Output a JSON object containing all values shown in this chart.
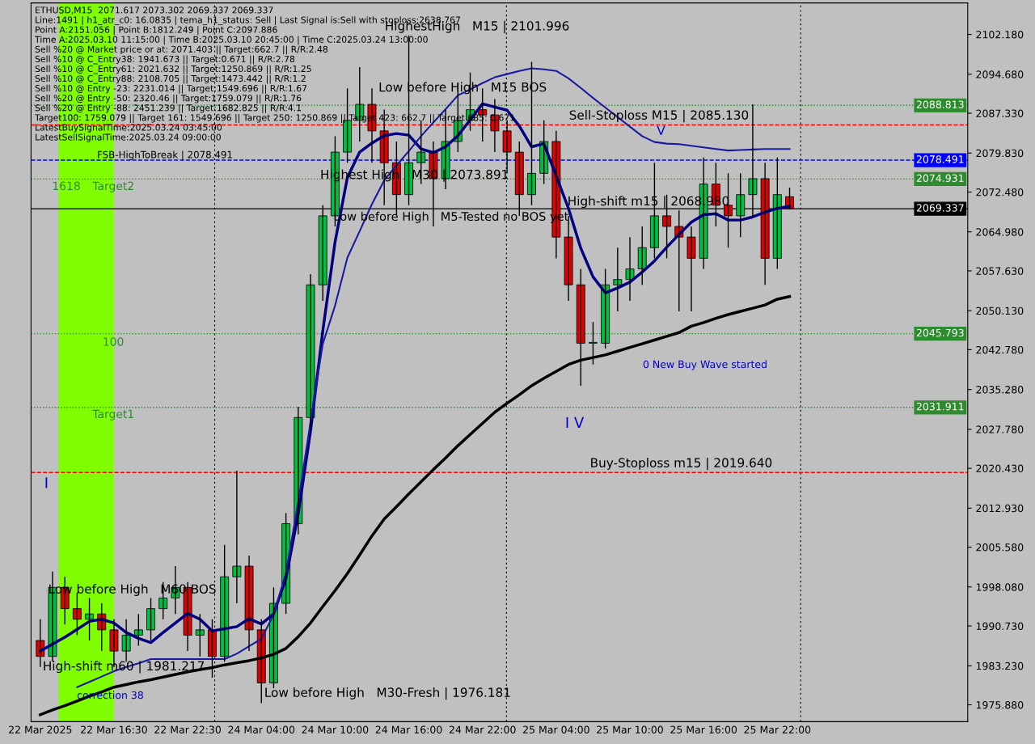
{
  "chart_data": {
    "type": "candlestick",
    "categories": [
      "22 Mar 2025",
      null,
      null,
      null,
      null,
      null,
      "22 Mar 16:30",
      null,
      null,
      null,
      null,
      null,
      "22 Mar 22:30",
      null,
      null,
      null,
      null,
      null,
      "24 Mar 04:00",
      null,
      null,
      null,
      null,
      null,
      "24 Mar 10:00",
      null,
      null,
      null,
      null,
      null,
      "24 Mar 16:00",
      null,
      null,
      null,
      null,
      null,
      "24 Mar 22:00",
      null,
      null,
      null,
      null,
      null,
      "25 Mar 04:00",
      null,
      null,
      null,
      null,
      null,
      "25 Mar 10:00",
      null,
      null,
      null,
      null,
      null,
      "25 Mar 16:00",
      null,
      null,
      null,
      null,
      null,
      "25 Mar 22:00",
      null
    ],
    "ohlc": [
      [
        1988,
        1992,
        1983,
        1985
      ],
      [
        1985,
        2001,
        1984,
        1998
      ],
      [
        1998,
        2000,
        1991,
        1994
      ],
      [
        1994,
        1997,
        1989,
        1992
      ],
      [
        1992,
        1996,
        1988,
        1993
      ],
      [
        1993,
        1995,
        1986,
        1990
      ],
      [
        1990,
        1992,
        1983,
        1986
      ],
      [
        1986,
        1992,
        1984,
        1989
      ],
      [
        1989,
        1993,
        1987,
        1990
      ],
      [
        1990,
        1996,
        1988,
        1994
      ],
      [
        1994,
        1999,
        1992,
        1996
      ],
      [
        1996,
        2002,
        1993,
        1998
      ],
      [
        1998,
        1999,
        1986,
        1989
      ],
      [
        1989,
        1993,
        1985,
        1990
      ],
      [
        1990,
        1992,
        1981,
        1985
      ],
      [
        1985,
        2006,
        1984,
        2000
      ],
      [
        2000,
        2020,
        1995,
        2002
      ],
      [
        2002,
        2004,
        1986,
        1990
      ],
      [
        1990,
        1992,
        1976.2,
        1980
      ],
      [
        1980,
        1998,
        1979,
        1995
      ],
      [
        1995,
        2012,
        1993,
        2010
      ],
      [
        2010,
        2032,
        2008,
        2030
      ],
      [
        2030,
        2057,
        2028,
        2055
      ],
      [
        2055,
        2070,
        2052,
        2068
      ],
      [
        2068,
        2083,
        2066,
        2080
      ],
      [
        2080,
        2092,
        2078,
        2086
      ],
      [
        2086,
        2096,
        2082,
        2089
      ],
      [
        2089,
        2092,
        2078,
        2084
      ],
      [
        2084,
        2088,
        2070,
        2078
      ],
      [
        2078,
        2082,
        2068,
        2072
      ],
      [
        2072,
        2102,
        2070,
        2078
      ],
      [
        2078,
        2086,
        2074,
        2080
      ],
      [
        2080,
        2082,
        2066,
        2075
      ],
      [
        2075,
        2088,
        2073,
        2082
      ],
      [
        2082,
        2093,
        2080,
        2086
      ],
      [
        2086,
        2095,
        2084,
        2088
      ],
      [
        2088,
        2092,
        2082,
        2087
      ],
      [
        2087,
        2090,
        2080,
        2084
      ],
      [
        2084,
        2086,
        2076,
        2080
      ],
      [
        2080,
        2082,
        2068,
        2072
      ],
      [
        2072,
        2097,
        2070,
        2076
      ],
      [
        2076,
        2086,
        2074,
        2082
      ],
      [
        2082,
        2084,
        2060,
        2064
      ],
      [
        2064,
        2068,
        2052,
        2055
      ],
      [
        2055,
        2058,
        2036,
        2044
      ],
      [
        2044,
        2048,
        2040,
        2044
      ],
      [
        2044,
        2058,
        2043,
        2055
      ],
      [
        2055,
        2062,
        2050,
        2056
      ],
      [
        2056,
        2064,
        2052,
        2058
      ],
      [
        2058,
        2066,
        2055,
        2062
      ],
      [
        2062,
        2078,
        2060,
        2068
      ],
      [
        2068,
        2072,
        2060,
        2066
      ],
      [
        2066,
        2069,
        2050,
        2064
      ],
      [
        2064,
        2066,
        2050,
        2060
      ],
      [
        2060,
        2079,
        2058,
        2074
      ],
      [
        2074,
        2078,
        2066,
        2070
      ],
      [
        2070,
        2076,
        2062,
        2068
      ],
      [
        2068,
        2076,
        2064,
        2072
      ],
      [
        2072,
        2089,
        2068,
        2075
      ],
      [
        2075,
        2078,
        2055,
        2060
      ],
      [
        2060,
        2079,
        2058,
        2072
      ],
      [
        2071.617,
        2073.302,
        2069.337,
        2069.337
      ]
    ],
    "series": [
      {
        "type": "line",
        "color": "#000000",
        "values": [
          1974.0,
          1974.9,
          1975.7,
          1976.6,
          1977.5,
          1978.3,
          1979.2,
          1979.7,
          1980.2,
          1980.6,
          1981.1,
          1981.6,
          1982.1,
          1982.5,
          1982.9,
          1983.4,
          1983.8,
          1984.2,
          1984.7,
          1985.4,
          1986.5,
          1988.7,
          1991.3,
          1994.4,
          1997.4,
          2000.6,
          2004.1,
          2007.7,
          2010.9,
          2013.2,
          2015.6,
          2017.9,
          2020.2,
          2022.4,
          2024.7,
          2026.8,
          2028.9,
          2031.0,
          2032.7,
          2034.3,
          2036.0,
          2037.4,
          2038.7,
          2040.0,
          2040.8,
          2041.3,
          2041.8,
          2042.5,
          2043.2,
          2043.9,
          2044.6,
          2045.3,
          2046.0,
          2047.2,
          2047.9,
          2048.7,
          2049.4,
          2050.0,
          2050.6,
          2051.2,
          2052.3,
          2052.8
        ]
      },
      {
        "type": "line",
        "color": "#000080",
        "values": [
          1986.0,
          1987.3,
          1988.6,
          1990.1,
          1991.6,
          1992.0,
          1991.3,
          1989.5,
          1988.4,
          1987.6,
          1989.5,
          1991.3,
          1993.1,
          1992.0,
          1989.8,
          1990.2,
          1990.6,
          1992.1,
          1991.1,
          1993.0,
          1999.7,
          2011.9,
          2027.4,
          2046.3,
          2063.1,
          2075.2,
          2080.0,
          2081.7,
          2083.1,
          2083.5,
          2083.2,
          2080.6,
          2079.9,
          2081.0,
          2083.1,
          2086.1,
          2089.1,
          2088.5,
          2087.9,
          2084.9,
          2081.0,
          2081.6,
          2075.5,
          2069.4,
          2061.9,
          2056.5,
          2053.5,
          2054.4,
          2055.5,
          2057.4,
          2059.5,
          2062.1,
          2064.5,
          2066.8,
          2068.2,
          2068.4,
          2067.2,
          2067.2,
          2067.8,
          2068.7,
          2069.4,
          2069.8
        ]
      },
      {
        "type": "line",
        "color": "#1a1aa0",
        "values": [
          null,
          null,
          null,
          1979.2,
          1980.2,
          1981.2,
          1982.2,
          1983.0,
          1983.7,
          1984.5,
          1984.5,
          1984.5,
          1984.5,
          1984.5,
          1984.5,
          1984.5,
          1985.5,
          1986.9,
          1988.3,
          1992.9,
          2000.7,
          2014.1,
          2029.2,
          2043.9,
          2051.1,
          2060.1,
          2065.1,
          2070.2,
          2074.7,
          2077.5,
          2080.2,
          2083.0,
          2085.6,
          2088.1,
          2090.7,
          2091.8,
          2093.0,
          2094.1,
          2094.7,
          2095.3,
          2095.8,
          2095.6,
          2095.3,
          2093.9,
          2092.1,
          2090.2,
          2088.4,
          2086.6,
          2084.8,
          2083.0,
          2081.9,
          2081.6,
          2081.5,
          2081.2,
          2080.9,
          2080.6,
          2080.3,
          2080.4,
          2080.5,
          2080.6,
          2080.6,
          2080.6
        ]
      }
    ],
    "ref_lines": [
      {
        "axis": "y",
        "value": 2088.813,
        "label": "2088.813",
        "color": "#2e8b2e",
        "line_style": "dotted"
      },
      {
        "axis": "y",
        "value": 2078.491,
        "label": "2078.491",
        "color": "#0000ff",
        "line_style": "dashed"
      },
      {
        "axis": "y",
        "value": 2074.931,
        "label": "2074.931",
        "color": "#2e8b2e",
        "line_style": "dotted"
      },
      {
        "axis": "y",
        "value": 2069.337,
        "label": "2069.337",
        "color": "#000000",
        "line_style": "solid"
      },
      {
        "axis": "y",
        "value": 2045.793,
        "label": "2045.793",
        "color": "#2e8b2e",
        "line_style": "dotted"
      },
      {
        "axis": "y",
        "value": 2031.911,
        "label": "2031.911",
        "color": "#2e8b2e",
        "line_style": "dotted"
      },
      {
        "axis": "y",
        "value": 2085.13,
        "color": "#ff0000",
        "line_style": "dashed"
      },
      {
        "axis": "y",
        "value": 2019.64,
        "color": "#ff0000",
        "line_style": "dashed"
      }
    ],
    "annotations": [
      "ETHUSD,M15  2071.617 2073.302 2069.337 2069.337",
      "Line:1491 | h1_atr_c0: 16.0835 | tema_h1_status: Sell | Last Signal is:Sell with stoploss:2638.767",
      "Point A:2151.056 | Point B:1812.249 | Point C:2097.886",
      "Time A:2025.03.10 11:15:00 | Time B:2025.03.10 20:45:00 | Time C:2025.03.24 13:00:00",
      "Sell %20 @ Market price or at: 2071.403 || Target:662.7 || R/R:2.48",
      "Sell %10 @ C_Entry38: 1941.673 || Target:0.671 || R/R:2.78",
      "Sell %10 @ C_Entry61: 2021.632 || Target:1250.869 || R/R:1.25",
      "Sell %10 @ C_Entry88: 2108.705 || Target:1473.442 || R/R:1.2",
      "Sell %10 @ Entry -23: 2231.014 || Target:1549.696 || R/R:1.67",
      "Sell %20 @ Entry -50: 2320.46 || Target:1759.079 || R/R:1.76",
      "Sell %20 @ Entry -88: 2451.239 || Target:1682.825 || R/R:4.1",
      "Target100: 1759.079 || Target 161: 1549.696 || Target 250: 1250.869 || Target 423: 662.7 || Target 685: 0.671",
      "LatestBuySignalTime:2025.03.24 03:45:00",
      "LatestSellSignalTime:2025.03.24 09:00:00",
      "HighestHigh   M15 | 2101.996",
      "Low before High   M15 BOS",
      "Sell-Stoploss M15 | 2085.130",
      "FSB-HighToBreak | 2078.491",
      "Highest High   M30 | 2073.891",
      "Target2",
      "Low before High   M5-Tested no BOS yet",
      "High-shift m15 | 2068.980",
      "1618",
      "V",
      "100",
      "0 New Buy Wave started",
      "Target1",
      "I V",
      "Buy-Stoploss m15 | 2019.640",
      "I",
      "Low before High   M60 BOS",
      "High-shift m60 | 1981.217",
      "correction 38",
      "Low before High   M30-Fresh | 1976.181"
    ],
    "ylim": [
      1972.7,
      2108.1
    ],
    "yticks": [
      {
        "value": 2102.18,
        "label": "2102.180"
      },
      {
        "value": 2094.68,
        "label": "2094.680"
      },
      {
        "value": 2087.33,
        "label": "2087.330"
      },
      {
        "value": 2079.83,
        "label": "2079.830"
      },
      {
        "value": 2072.48,
        "label": "2072.480"
      },
      {
        "value": 2064.98,
        "label": "2064.980"
      },
      {
        "value": 2057.63,
        "label": "2057.630"
      },
      {
        "value": 2050.13,
        "label": "2050.130"
      },
      {
        "value": 2042.78,
        "label": "2042.780"
      },
      {
        "value": 2035.28,
        "label": "2035.280"
      },
      {
        "value": 2027.78,
        "label": "2027.780"
      },
      {
        "value": 2020.43,
        "label": "2020.430"
      },
      {
        "value": 2012.93,
        "label": "2012.930"
      },
      {
        "value": 2005.58,
        "label": "2005.580"
      },
      {
        "value": 1998.08,
        "label": "1998.080"
      },
      {
        "value": 1990.73,
        "label": "1990.730"
      },
      {
        "value": 1983.23,
        "label": "1983.230"
      },
      {
        "value": 1975.88,
        "label": "1975.880"
      }
    ],
    "grid": false,
    "legend": false
  }
}
